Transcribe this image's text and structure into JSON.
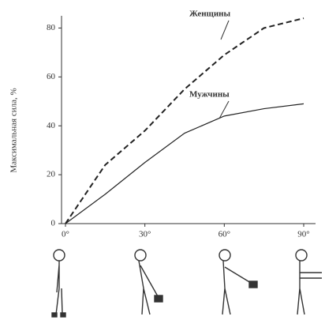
{
  "chart_data": {
    "type": "line",
    "y_label": "Максимальная сила, %",
    "x": [
      0,
      15,
      30,
      45,
      60,
      75,
      90
    ],
    "xlim": [
      0,
      90
    ],
    "xticks": [
      {
        "value": 0,
        "label": "0°"
      },
      {
        "value": 30,
        "label": "30°"
      },
      {
        "value": 60,
        "label": "60°"
      },
      {
        "value": 90,
        "label": "90°"
      }
    ],
    "ylim": [
      0,
      85
    ],
    "yticks": [
      0,
      20,
      40,
      60,
      80
    ],
    "series": [
      {
        "name": "Женщины",
        "color": "#222222",
        "style": "dashed",
        "values": [
          0,
          24,
          38,
          55,
          69,
          80,
          84
        ]
      },
      {
        "name": "Мужчины",
        "color": "#222222",
        "style": "solid",
        "values": [
          0,
          12,
          25,
          37,
          44,
          47,
          49
        ]
      }
    ]
  }
}
